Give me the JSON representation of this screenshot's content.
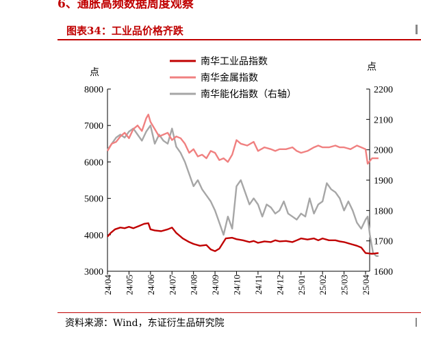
{
  "heading": "6、通胀高频数据周度观察",
  "figure_title": "图表34：工业品价格齐跌",
  "source": "资料来源：Wind，东证衍生品研究院",
  "chart_data": {
    "type": "line",
    "left_axis_unit": "点",
    "right_axis_unit": "点",
    "ylim_left": [
      3000,
      8000
    ],
    "ylim_right": [
      1600,
      2200
    ],
    "yticks_left": [
      "3000",
      "4000",
      "5000",
      "6000",
      "7000",
      "8000"
    ],
    "yticks_right": [
      "1600",
      "1700",
      "1800",
      "1900",
      "2000",
      "2100",
      "2200"
    ],
    "x_tick_labels": [
      "24/04",
      "24/05",
      "24/06",
      "24/07",
      "24/08",
      "24/09",
      "24/10",
      "24/11",
      "24/12",
      "25/01",
      "25/02",
      "25/03",
      "25/04"
    ],
    "legend_position": "top-center",
    "grid": false,
    "series": [
      {
        "name": "南华工业品指数",
        "axis": "left",
        "color": "#c00000",
        "x": [
          0,
          0.15,
          0.35,
          0.6,
          0.8,
          1.0,
          1.2,
          1.5,
          1.7,
          1.9,
          2.0,
          2.2,
          2.5,
          2.8,
          3.0,
          3.2,
          3.5,
          3.8,
          4.0,
          4.3,
          4.6,
          4.8,
          5.0,
          5.2,
          5.5,
          5.8,
          6.0,
          6.3,
          6.6,
          6.8,
          7.0,
          7.3,
          7.6,
          7.8,
          8.0,
          8.3,
          8.6,
          8.8,
          9.0,
          9.3,
          9.6,
          9.8,
          10.0,
          10.3,
          10.6,
          10.8,
          11.0,
          11.3,
          11.6,
          11.8,
          12.0,
          12.3,
          12.6
        ],
        "values": [
          3950,
          4050,
          4150,
          4200,
          4180,
          4220,
          4180,
          4250,
          4300,
          4320,
          4150,
          4120,
          4100,
          4150,
          4200,
          4050,
          3900,
          3800,
          3750,
          3700,
          3720,
          3600,
          3550,
          3620,
          3900,
          3920,
          3880,
          3850,
          3800,
          3830,
          3780,
          3820,
          3800,
          3850,
          3820,
          3830,
          3800,
          3850,
          3900,
          3870,
          3900,
          3850,
          3900,
          3850,
          3850,
          3820,
          3800,
          3750,
          3700,
          3650,
          3500,
          3480,
          3500
        ]
      },
      {
        "name": "南华金属指数",
        "axis": "left",
        "color": "#f08080",
        "x": [
          0,
          0.2,
          0.4,
          0.6,
          0.8,
          1.0,
          1.2,
          1.4,
          1.6,
          1.8,
          1.9,
          2.0,
          2.2,
          2.4,
          2.6,
          2.8,
          3.0,
          3.2,
          3.4,
          3.6,
          3.8,
          4.0,
          4.2,
          4.4,
          4.6,
          4.8,
          5.0,
          5.2,
          5.4,
          5.6,
          5.8,
          6.0,
          6.2,
          6.5,
          6.8,
          7.0,
          7.3,
          7.6,
          7.8,
          8.0,
          8.3,
          8.6,
          8.8,
          9.0,
          9.3,
          9.6,
          9.8,
          10.0,
          10.3,
          10.6,
          10.8,
          11.0,
          11.3,
          11.6,
          11.8,
          12.0,
          12.1,
          12.3,
          12.6
        ],
        "values": [
          6300,
          6500,
          6550,
          6700,
          6800,
          6650,
          6900,
          7000,
          6850,
          7200,
          7300,
          7100,
          6900,
          6700,
          6750,
          6800,
          6600,
          6700,
          6650,
          6500,
          6250,
          6350,
          6150,
          6200,
          6100,
          6300,
          6250,
          6050,
          6100,
          6000,
          6200,
          6600,
          6500,
          6450,
          6550,
          6300,
          6400,
          6350,
          6300,
          6350,
          6350,
          6400,
          6300,
          6250,
          6300,
          6400,
          6450,
          6400,
          6400,
          6450,
          6400,
          6400,
          6350,
          6450,
          6400,
          6350,
          5950,
          6100,
          6100
        ]
      },
      {
        "name": "南华能化指数（右轴）",
        "axis": "right",
        "color": "#a6a6a6",
        "x": [
          0,
          0.2,
          0.4,
          0.6,
          0.8,
          1.0,
          1.2,
          1.4,
          1.6,
          1.8,
          2.0,
          2.2,
          2.4,
          2.6,
          2.8,
          3.0,
          3.2,
          3.4,
          3.6,
          3.8,
          4.0,
          4.2,
          4.4,
          4.6,
          4.8,
          5.0,
          5.2,
          5.4,
          5.6,
          5.8,
          6.0,
          6.2,
          6.4,
          6.6,
          6.8,
          7.0,
          7.2,
          7.4,
          7.6,
          7.8,
          8.0,
          8.2,
          8.4,
          8.6,
          8.8,
          9.0,
          9.2,
          9.4,
          9.6,
          9.8,
          10.0,
          10.2,
          10.4,
          10.6,
          10.8,
          11.0,
          11.2,
          11.4,
          11.6,
          11.8,
          12.0,
          12.1,
          12.2,
          12.35,
          12.5,
          12.6
        ],
        "values": [
          2000,
          2020,
          2040,
          2050,
          2040,
          2060,
          2070,
          2050,
          2030,
          2060,
          2080,
          2020,
          2050,
          2030,
          2020,
          2070,
          2010,
          1990,
          1960,
          1920,
          1880,
          1900,
          1870,
          1850,
          1830,
          1800,
          1760,
          1720,
          1780,
          1740,
          1880,
          1900,
          1860,
          1820,
          1840,
          1820,
          1780,
          1820,
          1810,
          1790,
          1800,
          1830,
          1790,
          1780,
          1770,
          1790,
          1780,
          1840,
          1790,
          1820,
          1830,
          1890,
          1870,
          1860,
          1840,
          1800,
          1830,
          1800,
          1760,
          1740,
          1770,
          1780,
          1720,
          1660,
          1650,
          1650
        ]
      }
    ]
  }
}
